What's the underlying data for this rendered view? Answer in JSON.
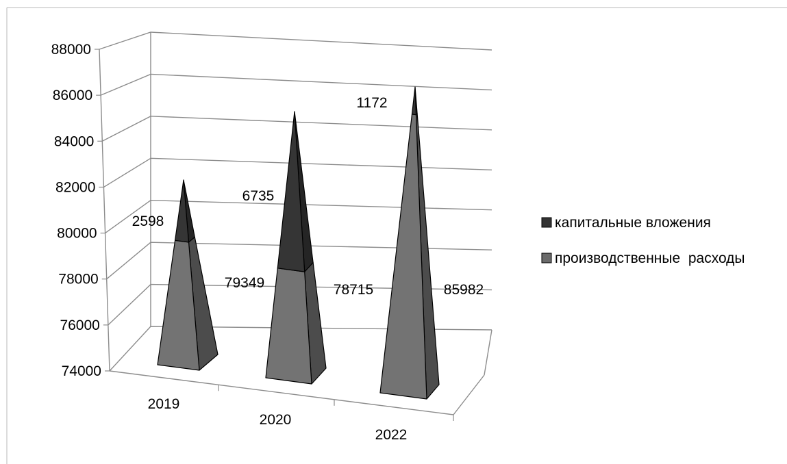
{
  "chart_data": {
    "type": "bar",
    "style": "3d-stacked-pyramid",
    "categories": [
      "2019",
      "2020",
      "2022"
    ],
    "series": [
      {
        "name": "производственные  расходы",
        "values": [
          79349,
          78715,
          85982
        ],
        "color": "#6b6b6b"
      },
      {
        "name": "капитальные вложения",
        "values": [
          2598,
          6735,
          1172
        ],
        "color": "#333333"
      }
    ],
    "ylim": [
      74000,
      88000
    ],
    "yticks": [
      "74000",
      "76000",
      "78000",
      "80000",
      "82000",
      "84000",
      "86000",
      "88000"
    ],
    "grid": true,
    "legend": "right"
  }
}
